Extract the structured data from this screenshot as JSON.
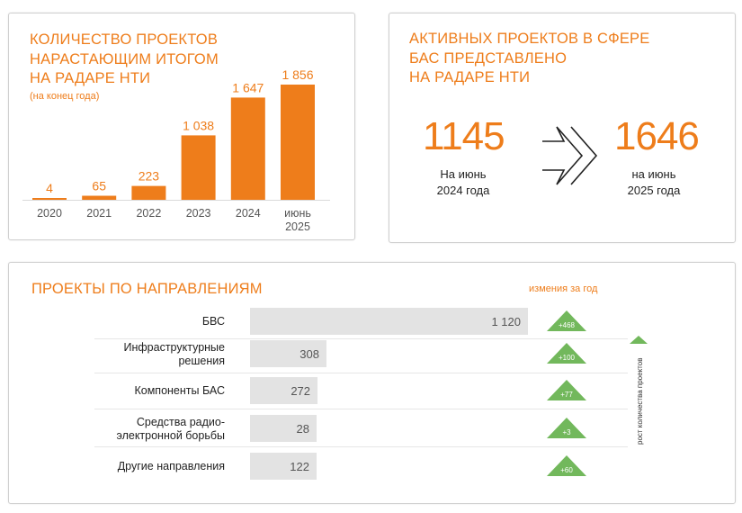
{
  "chart_data": [
    {
      "type": "bar",
      "title": "КОЛИЧЕСТВО ПРОЕКТОВ НАРАСТАЮЩИМ ИТОГОМ НА РАДАРЕ НТИ",
      "subtitle": "(на конец года)",
      "categories": [
        "2020",
        "2021",
        "2022",
        "2023",
        "2024",
        "июнь 2025"
      ],
      "values": [
        4,
        65,
        223,
        1038,
        1647,
        1856
      ],
      "value_labels": [
        "4",
        "65",
        "223",
        "1 038",
        "1 647",
        "1 856"
      ],
      "color": "#ee7d1b"
    },
    {
      "type": "bar",
      "orientation": "horizontal",
      "title": "ПРОЕКТЫ ПО НАПРАВЛЕНИЯМ",
      "categories": [
        "БВС",
        "Инфраструктурные решения",
        "Компоненты БАС",
        "Средства радио-электронной борьбы",
        "Другие направления"
      ],
      "values": [
        1120,
        308,
        272,
        28,
        122
      ],
      "value_labels": [
        "1 120",
        "308",
        "272",
        "28",
        "122"
      ],
      "changes": [
        "+468",
        "+100",
        "+77",
        "+3",
        "+60"
      ],
      "change_header": "измения за год",
      "side_label": "рост количества проектов",
      "bar_color": "#e3e3e3",
      "change_color": "#72b85c"
    }
  ],
  "panel1": {
    "title_lines": [
      "КОЛИЧЕСТВО ПРОЕКТОВ",
      "НАРАСТАЮЩИМ ИТОГОМ",
      "НА РАДАРЕ НТИ"
    ],
    "subtitle": "(на конец года)",
    "cat_lines": [
      [
        "2020"
      ],
      [
        "2021"
      ],
      [
        "2022"
      ],
      [
        "2023"
      ],
      [
        "2024"
      ],
      [
        "июнь",
        "2025"
      ]
    ]
  },
  "panel2": {
    "title_lines": [
      "АКТИВНЫХ ПРОЕКТОВ В СФЕРЕ",
      "БАС ПРЕДСТАВЛЕНО",
      "НА РАДАРЕ НТИ"
    ],
    "left": {
      "value": "1145",
      "caption_lines": [
        "На июнь",
        "2024 года"
      ]
    },
    "right": {
      "value": "1646",
      "caption_lines": [
        "на июнь",
        "2025 года"
      ]
    }
  },
  "panel3": {
    "title": "ПРОЕКТЫ ПО НАПРАВЛЕНИЯМ",
    "change_header": "измения за год",
    "side_label": "рост количества проектов",
    "category_lines": [
      [
        "БВС"
      ],
      [
        "Инфраструктурные",
        "решения"
      ],
      [
        "Компоненты БАС"
      ],
      [
        "Средства радио-",
        "электронной борьбы"
      ],
      [
        "Другие направления"
      ]
    ]
  },
  "colors": {
    "accent": "#ee7d1b",
    "bar_gray": "#e3e3e3",
    "green": "#72b85c"
  }
}
